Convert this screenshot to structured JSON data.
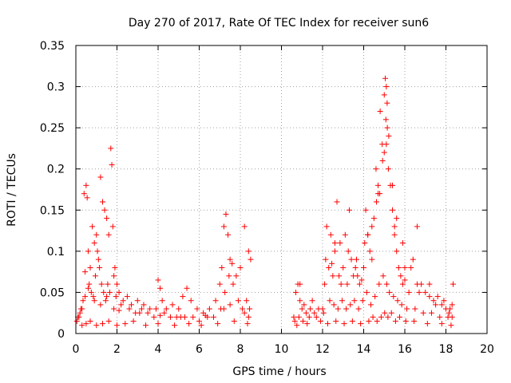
{
  "chart_data": {
    "type": "scatter",
    "title": "Day 270 of 2017, Rate Of TEC Index for receiver sun6",
    "xlabel": "GPS time / hours",
    "ylabel": "ROTI / TECUs",
    "xlim": [
      0,
      20
    ],
    "ylim": [
      0,
      0.35
    ],
    "xticks": [
      "0",
      "2",
      "4",
      "6",
      "8",
      "10",
      "12",
      "14",
      "16",
      "18",
      "20"
    ],
    "yticks": [
      "0",
      "0.05",
      "0.1",
      "0.15",
      "0.2",
      "0.25",
      "0.3",
      "0.35"
    ],
    "grid": true,
    "marker": "+",
    "color": "#ff0000",
    "series": [
      {
        "name": "sun6 ROTI",
        "x": [
          0.1,
          0.2,
          0.3,
          0.4,
          0.5,
          0.55,
          0.6,
          0.7,
          0.8,
          0.9,
          1.0,
          1.1,
          1.2,
          1.3,
          1.4,
          1.5,
          1.6,
          1.7,
          1.75,
          1.8,
          1.9,
          2.0,
          2.1,
          2.3,
          2.5,
          2.7,
          3.0,
          3.3,
          3.6,
          3.9,
          4.0,
          4.1,
          4.2,
          4.4,
          4.7,
          5.0,
          5.2,
          5.4,
          5.6,
          5.9,
          6.2,
          6.5,
          6.8,
          7.0,
          7.1,
          7.2,
          7.3,
          7.4,
          7.5,
          7.6,
          7.8,
          8.0,
          8.2,
          8.4,
          8.5,
          0.05,
          0.15,
          0.35,
          0.45,
          0.65,
          0.75,
          0.85,
          0.95,
          1.05,
          1.15,
          1.25,
          1.35,
          1.45,
          1.55,
          1.65,
          1.85,
          1.95,
          2.2,
          2.6,
          2.9,
          3.2,
          3.5,
          3.8,
          4.3,
          4.6,
          4.9,
          5.3,
          5.7,
          6.0,
          6.4,
          6.7,
          7.05,
          7.25,
          7.45,
          7.65,
          7.9,
          8.1,
          8.3,
          8.45,
          0.3,
          0.5,
          0.7,
          1.0,
          1.3,
          1.6,
          2.0,
          2.4,
          2.8,
          3.4,
          4.0,
          4.8,
          5.5,
          6.1,
          6.9,
          7.7,
          8.35,
          0.25,
          0.45,
          0.6,
          0.9,
          1.2,
          1.5,
          1.85,
          2.1,
          3.1,
          4.1,
          5.1,
          6.3,
          7.2,
          7.5,
          8.2,
          8.4,
          10.6,
          10.7,
          10.8,
          10.9,
          11.0,
          11.1,
          11.2,
          11.4,
          11.6,
          11.8,
          12.0,
          12.1,
          12.2,
          12.3,
          12.4,
          12.5,
          12.6,
          12.7,
          12.8,
          12.9,
          13.0,
          13.1,
          13.2,
          13.3,
          13.4,
          13.5,
          13.6,
          13.7,
          13.8,
          13.9,
          14.0,
          14.1,
          14.2,
          14.3,
          14.4,
          14.5,
          14.6,
          14.7,
          14.8,
          14.9,
          15.0,
          15.05,
          15.1,
          15.15,
          15.2,
          15.3,
          15.4,
          15.5,
          15.6,
          15.7,
          15.8,
          15.9,
          16.0,
          16.2,
          16.4,
          16.6,
          16.8,
          17.0,
          17.2,
          17.4,
          17.6,
          17.8,
          18.0,
          18.2,
          18.35,
          10.65,
          10.85,
          11.05,
          11.35,
          11.7,
          12.05,
          12.35,
          12.55,
          12.75,
          12.95,
          13.15,
          13.35,
          13.55,
          13.75,
          13.95,
          14.15,
          14.35,
          14.55,
          14.75,
          14.95,
          15.12,
          15.25,
          15.45,
          15.65,
          15.85,
          16.1,
          16.5,
          16.9,
          17.3,
          17.7,
          18.1,
          18.3,
          10.75,
          11.25,
          11.9,
          12.25,
          12.65,
          13.05,
          13.45,
          13.85,
          14.25,
          14.45,
          14.65,
          14.85,
          15.02,
          15.18,
          15.35,
          15.55,
          15.75,
          16.05,
          16.45,
          17.1,
          17.8,
          18.25,
          12.45,
          12.6,
          13.25,
          14.05,
          14.4,
          14.62,
          14.78,
          14.92,
          15.0,
          15.08,
          15.14,
          15.22,
          15.4,
          15.6,
          15.9,
          16.3,
          16.6,
          17.5,
          18.15,
          10.9,
          11.5,
          12.15,
          12.85,
          13.65,
          14.2,
          14.7,
          15.1,
          15.5,
          16.0,
          16.7,
          17.2,
          17.9,
          18.3
        ],
        "y": [
          0.02,
          0.025,
          0.03,
          0.17,
          0.18,
          0.165,
          0.1,
          0.08,
          0.13,
          0.11,
          0.12,
          0.09,
          0.19,
          0.16,
          0.15,
          0.14,
          0.12,
          0.225,
          0.205,
          0.13,
          0.08,
          0.06,
          0.05,
          0.04,
          0.045,
          0.035,
          0.04,
          0.035,
          0.03,
          0.03,
          0.065,
          0.055,
          0.04,
          0.03,
          0.035,
          0.03,
          0.045,
          0.055,
          0.04,
          0.03,
          0.025,
          0.03,
          0.04,
          0.06,
          0.08,
          0.13,
          0.145,
          0.12,
          0.09,
          0.085,
          0.07,
          0.08,
          0.13,
          0.1,
          0.09,
          0.015,
          0.02,
          0.04,
          0.075,
          0.06,
          0.05,
          0.045,
          0.07,
          0.1,
          0.08,
          0.06,
          0.05,
          0.04,
          0.06,
          0.05,
          0.07,
          0.045,
          0.035,
          0.03,
          0.025,
          0.03,
          0.025,
          0.02,
          0.025,
          0.02,
          0.02,
          0.02,
          0.02,
          0.015,
          0.02,
          0.02,
          0.03,
          0.05,
          0.07,
          0.06,
          0.04,
          0.03,
          0.04,
          0.03,
          0.01,
          0.012,
          0.015,
          0.01,
          0.012,
          0.015,
          0.01,
          0.012,
          0.015,
          0.01,
          0.012,
          0.01,
          0.012,
          0.01,
          0.012,
          0.015,
          0.012,
          0.03,
          0.045,
          0.055,
          0.04,
          0.035,
          0.045,
          0.03,
          0.028,
          0.025,
          0.022,
          0.02,
          0.022,
          0.03,
          0.035,
          0.025,
          0.02,
          0.02,
          0.05,
          0.06,
          0.04,
          0.03,
          0.035,
          0.025,
          0.03,
          0.025,
          0.03,
          0.03,
          0.06,
          0.13,
          0.08,
          0.12,
          0.07,
          0.1,
          0.16,
          0.07,
          0.06,
          0.08,
          0.12,
          0.06,
          0.15,
          0.09,
          0.07,
          0.08,
          0.07,
          0.06,
          0.065,
          0.08,
          0.15,
          0.12,
          0.1,
          0.09,
          0.14,
          0.2,
          0.18,
          0.27,
          0.23,
          0.29,
          0.31,
          0.3,
          0.25,
          0.2,
          0.18,
          0.15,
          0.13,
          0.1,
          0.08,
          0.07,
          0.06,
          0.065,
          0.05,
          0.09,
          0.13,
          0.06,
          0.05,
          0.06,
          0.04,
          0.045,
          0.035,
          0.03,
          0.03,
          0.06,
          0.015,
          0.02,
          0.015,
          0.02,
          0.02,
          0.025,
          0.04,
          0.035,
          0.03,
          0.04,
          0.03,
          0.035,
          0.04,
          0.03,
          0.04,
          0.05,
          0.035,
          0.045,
          0.06,
          0.07,
          0.06,
          0.05,
          0.045,
          0.04,
          0.035,
          0.03,
          0.03,
          0.025,
          0.025,
          0.02,
          0.02,
          0.02,
          0.01,
          0.012,
          0.015,
          0.012,
          0.015,
          0.012,
          0.015,
          0.012,
          0.015,
          0.02,
          0.015,
          0.02,
          0.025,
          0.02,
          0.025,
          0.015,
          0.02,
          0.015,
          0.015,
          0.012,
          0.012,
          0.01,
          0.085,
          0.11,
          0.1,
          0.11,
          0.13,
          0.16,
          0.17,
          0.21,
          0.22,
          0.26,
          0.28,
          0.24,
          0.18,
          0.14,
          0.11,
          0.08,
          0.06,
          0.035,
          0.025,
          0.06,
          0.04,
          0.09,
          0.11,
          0.09,
          0.12,
          0.17,
          0.23,
          0.12,
          0.08,
          0.05,
          0.045,
          0.04,
          0.035
        ]
      }
    ]
  }
}
